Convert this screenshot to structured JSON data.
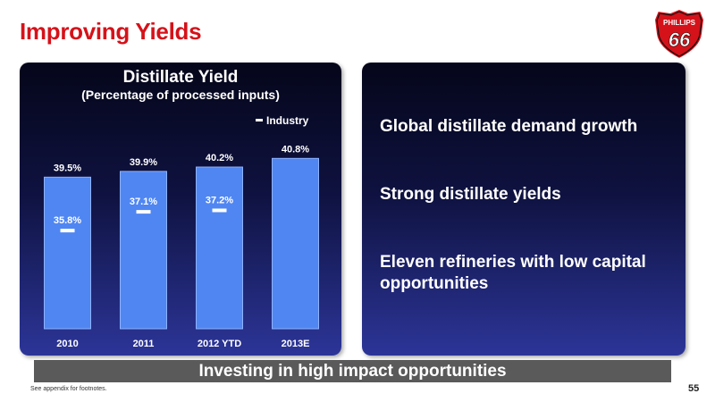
{
  "slide": {
    "title": "Improving Yields",
    "logo_text_top": "PHILLIPS",
    "logo_text_number": "66",
    "banner": "Investing in high impact opportunities",
    "footnote": "See appendix for footnotes.",
    "page_number": "55"
  },
  "bullets": [
    "Global distillate demand growth",
    "Strong distillate yields",
    "Eleven refineries with low capital opportunities"
  ],
  "colors": {
    "title_red": "#d5121a",
    "bar_fill": "#4f86f2",
    "industry_marker": "#ffffff",
    "banner_gray": "#5a5a5a"
  },
  "chart_data": {
    "type": "bar",
    "title": "Distillate Yield",
    "subtitle": "(Percentage of processed inputs)",
    "categories": [
      "2010",
      "2011",
      "2012 YTD",
      "2013E"
    ],
    "series": [
      {
        "values": [
          39.5,
          39.9,
          40.2,
          40.8
        ],
        "labels": [
          "39.5%",
          "39.9%",
          "40.2%",
          "40.8%"
        ]
      },
      {
        "name": "Industry",
        "values": [
          35.8,
          37.1,
          37.2,
          null
        ],
        "labels": [
          "35.8%",
          "37.1%",
          "37.2%",
          ""
        ]
      }
    ],
    "ylim": [
      29,
      41.5
    ],
    "legend": "top-right",
    "grid": false
  }
}
